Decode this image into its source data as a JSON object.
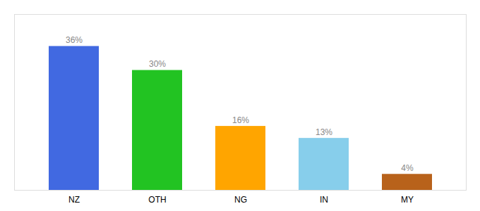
{
  "chart_data": {
    "type": "bar",
    "categories": [
      "NZ",
      "OTH",
      "NG",
      "IN",
      "MY"
    ],
    "values": [
      36,
      30,
      16,
      13,
      4
    ],
    "value_labels": [
      "36%",
      "30%",
      "16%",
      "13%",
      "4%"
    ],
    "data_labels": true,
    "colors": [
      "#4169e1",
      "#22c322",
      "#ffa500",
      "#87ceeb",
      "#b8621b"
    ],
    "ylim": [
      0,
      44
    ],
    "grid": false,
    "tick_labels": "x"
  }
}
